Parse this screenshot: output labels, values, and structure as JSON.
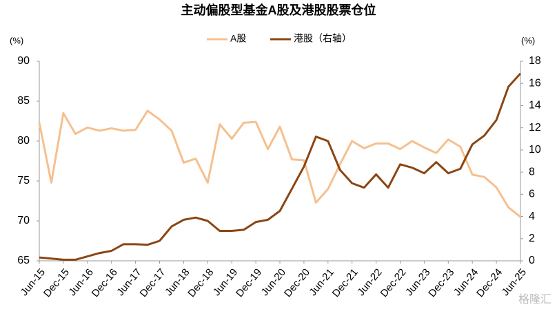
{
  "chart_data": {
    "type": "line",
    "title": "主动偏股型基金A股及港股股票仓位",
    "y_unit": "(%)",
    "y2_unit": "(%)",
    "watermark": "格隆汇",
    "legend": "top",
    "categories": [
      "Jun-15",
      null,
      "Dec-15",
      null,
      "Jun-16",
      null,
      "Dec-16",
      null,
      "Jun-17",
      null,
      "Dec-17",
      null,
      "Jun-18",
      null,
      "Dec-18",
      null,
      "Jun-19",
      null,
      "Dec-19",
      null,
      "Jun-20",
      null,
      "Dec-20",
      null,
      "Jun-21",
      null,
      "Dec-21",
      null,
      "Jun-22",
      null,
      "Dec-22",
      null,
      "Jun-23",
      null,
      "Dec-23",
      null,
      "Jun-24",
      null,
      "Dec-24",
      null,
      "Jun-25"
    ],
    "series": [
      {
        "name": "A股",
        "color": "#f5c08e",
        "values": [
          82.3,
          74.8,
          83.5,
          80.9,
          81.7,
          81.3,
          81.6,
          81.3,
          81.4,
          83.8,
          82.7,
          81.3,
          77.3,
          77.8,
          74.8,
          82.1,
          80.3,
          82.3,
          82.4,
          79.0,
          81.8,
          77.7,
          77.6,
          72.3,
          74.0,
          77.1,
          80.0,
          79.1,
          79.7,
          79.7,
          79.0,
          80.0,
          79.2,
          78.5,
          80.2,
          79.3,
          75.8,
          75.5,
          74.2,
          71.7,
          70.5
        ]
      },
      {
        "name": "港股（右轴）",
        "color": "#8b4513",
        "axis": "y2",
        "values": [
          0.3,
          0.2,
          0.1,
          0.1,
          0.4,
          0.7,
          0.9,
          1.5,
          1.5,
          1.45,
          1.8,
          3.1,
          3.7,
          3.9,
          3.6,
          2.7,
          2.7,
          2.8,
          3.5,
          3.7,
          4.5,
          6.5,
          8.5,
          11.2,
          10.8,
          8.2,
          7.0,
          6.6,
          7.8,
          6.6,
          8.7,
          8.4,
          7.9,
          8.9,
          7.9,
          8.3,
          10.5,
          11.3,
          12.7,
          15.7,
          16.9
        ]
      }
    ],
    "ylim": [
      65,
      90
    ],
    "yticks": [
      65,
      70,
      75,
      80,
      85,
      90
    ],
    "y2lim": [
      0,
      18
    ],
    "y2ticks": [
      0,
      2,
      4,
      6,
      8,
      10,
      12,
      14,
      16,
      18
    ]
  }
}
